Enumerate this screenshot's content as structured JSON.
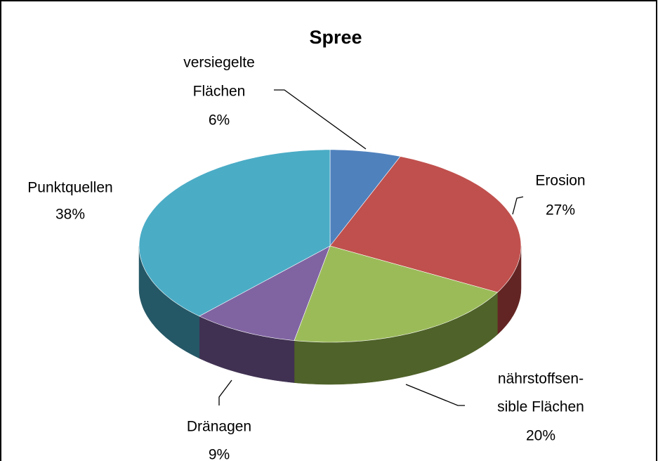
{
  "chart_data": {
    "type": "pie",
    "title": "Spree",
    "categories": [
      [
        "versiegelte",
        "Flächen"
      ],
      [
        "Erosion"
      ],
      [
        "nährstoffsen-",
        "sible Flächen"
      ],
      [
        "Dränagen"
      ],
      [
        "Punktquellen"
      ]
    ],
    "values": [
      6,
      27,
      20,
      9,
      38
    ],
    "value_labels": [
      "6%",
      "27%",
      "20%",
      "9%",
      "38%"
    ],
    "colors": [
      "#4f81bd",
      "#c0504d",
      "#9bbb59",
      "#8064a2",
      "#4bacc6"
    ],
    "side_colors": [
      "#2c4d75",
      "#632523",
      "#4f6229",
      "#403152",
      "#255866"
    ]
  }
}
